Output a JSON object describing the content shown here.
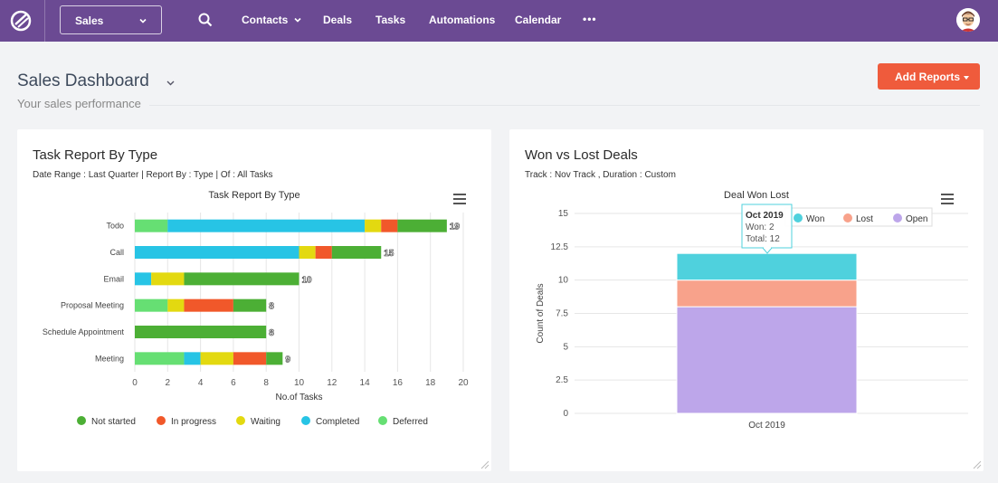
{
  "nav": {
    "pipeline": "Sales",
    "items": [
      "Contacts",
      "Deals",
      "Tasks",
      "Automations",
      "Calendar"
    ],
    "more": "•••"
  },
  "page": {
    "title": "Sales Dashboard",
    "subtitle": "Your sales performance",
    "add_reports": "Add Reports"
  },
  "card1": {
    "title": "Task Report By Type",
    "subtitle": "Date Range : Last Quarter | Report By : Type | Of : All Tasks",
    "chart_title": "Task Report By Type"
  },
  "card2": {
    "title": "Won vs Lost Deals",
    "subtitle": "Track : Nov Track ,  Duration : Custom",
    "chart_title": "Deal Won Lost"
  },
  "colors": {
    "nav": "#6b4a93",
    "accent": "#ef5b3c",
    "not_started": "#4caf35",
    "in_progress": "#f1582a",
    "waiting": "#e3d910",
    "completed": "#27c4e5",
    "deferred": "#66df73",
    "won": "#4fd1dd",
    "lost": "#f8a28b",
    "open": "#bda6ea"
  },
  "chart_data": [
    {
      "type": "bar",
      "orientation": "horizontal",
      "stacked": true,
      "title": "Task Report By Type",
      "categories": [
        "Todo",
        "Call",
        "Email",
        "Proposal Meeting",
        "Schedule Appointment",
        "Meeting"
      ],
      "series": [
        {
          "name": "Deferred",
          "values": [
            2,
            0,
            0,
            2,
            0,
            3
          ]
        },
        {
          "name": "Completed",
          "values": [
            12,
            10,
            1,
            0,
            0,
            1
          ]
        },
        {
          "name": "Waiting",
          "values": [
            1,
            1,
            2,
            1,
            0,
            2
          ]
        },
        {
          "name": "In progress",
          "values": [
            1,
            1,
            0,
            3,
            0,
            2
          ]
        },
        {
          "name": "Not started",
          "values": [
            3,
            3,
            7,
            2,
            8,
            1
          ]
        }
      ],
      "legend_order": [
        "Not started",
        "In progress",
        "Waiting",
        "Completed",
        "Deferred"
      ],
      "totals": [
        19,
        15,
        10,
        8,
        8,
        9
      ],
      "xlabel": "No.of Tasks",
      "xlim": [
        0,
        20
      ],
      "xticks": [
        0,
        2,
        4,
        6,
        8,
        10,
        12,
        14,
        16,
        18,
        20
      ],
      "legend_position": "bottom",
      "grid": true
    },
    {
      "type": "bar",
      "stacked": true,
      "title": "Deal Won Lost",
      "categories": [
        "Oct 2019"
      ],
      "series": [
        {
          "name": "Won",
          "values": [
            2
          ]
        },
        {
          "name": "Lost",
          "values": [
            2
          ]
        },
        {
          "name": "Open",
          "values": [
            8
          ]
        }
      ],
      "ylabel": "Count of Deals",
      "ylim": [
        0,
        15
      ],
      "yticks": [
        "0",
        "2.5",
        "5",
        "7.5",
        "10",
        "12.5",
        "15"
      ],
      "legend_position": "top-right",
      "grid": true,
      "tooltip": {
        "title": "Oct 2019",
        "line1": "Won: 2",
        "line2": "Total: 12"
      }
    }
  ]
}
